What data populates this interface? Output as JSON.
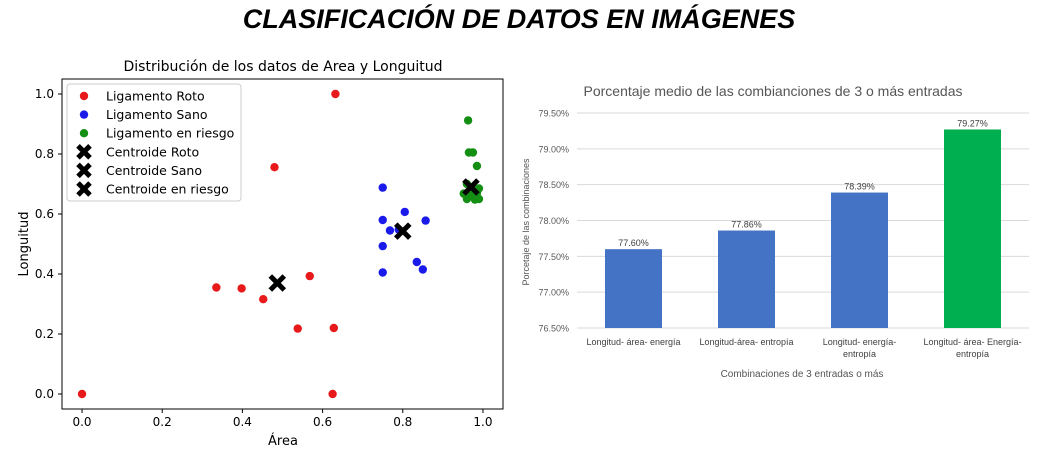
{
  "page": {
    "title": "CLASIFICACIÓN DE DATOS EN IMÁGENES"
  },
  "chart_data": [
    {
      "type": "scatter",
      "title": "Distribución de los datos de Area y Longuitud",
      "xlabel": "Área",
      "ylabel": "Longuitud",
      "xlim": [
        -0.05,
        1.05
      ],
      "ylim": [
        -0.05,
        1.05
      ],
      "xticks": [
        "0.0",
        "0.2",
        "0.4",
        "0.6",
        "0.8",
        "1.0"
      ],
      "yticks": [
        "0.0",
        "0.2",
        "0.4",
        "0.6",
        "0.8",
        "1.0"
      ],
      "legend_position": "top-left",
      "series": [
        {
          "name": "Ligamento Roto",
          "color": "#e8191b",
          "marker": "circle",
          "points": [
            [
              0.0,
              0.0
            ],
            [
              0.335,
              0.355
            ],
            [
              0.398,
              0.352
            ],
            [
              0.452,
              0.316
            ],
            [
              0.48,
              0.756
            ],
            [
              0.538,
              0.218
            ],
            [
              0.568,
              0.393
            ],
            [
              0.625,
              0.0
            ],
            [
              0.628,
              0.22
            ],
            [
              0.632,
              1.0
            ]
          ]
        },
        {
          "name": "Ligamento Sano",
          "color": "#1a1aeb",
          "marker": "circle",
          "points": [
            [
              0.75,
              0.688
            ],
            [
              0.75,
              0.58
            ],
            [
              0.75,
              0.493
            ],
            [
              0.75,
              0.405
            ],
            [
              0.768,
              0.545
            ],
            [
              0.79,
              0.548
            ],
            [
              0.805,
              0.607
            ],
            [
              0.835,
              0.44
            ],
            [
              0.85,
              0.415
            ],
            [
              0.857,
              0.578
            ]
          ]
        },
        {
          "name": "Ligamento en riesgo",
          "color": "#148f14",
          "marker": "circle",
          "points": [
            [
              0.963,
              0.912
            ],
            [
              0.965,
              0.805
            ],
            [
              0.975,
              0.805
            ],
            [
              0.985,
              0.76
            ],
            [
              0.952,
              0.668
            ],
            [
              0.96,
              0.7
            ],
            [
              0.96,
              0.65
            ],
            [
              0.97,
              0.66
            ],
            [
              0.975,
              0.685
            ],
            [
              0.98,
              0.648
            ],
            [
              0.985,
              0.67
            ],
            [
              0.99,
              0.65
            ],
            [
              0.99,
              0.685
            ],
            [
              0.965,
              0.66
            ]
          ]
        },
        {
          "name": "Centroide Roto",
          "color": "#000000",
          "marker": "x",
          "points": [
            [
              0.487,
              0.37
            ]
          ]
        },
        {
          "name": "Centroide Sano",
          "color": "#000000",
          "marker": "x",
          "points": [
            [
              0.8,
              0.543
            ]
          ]
        },
        {
          "name": "Centroide en riesgo",
          "color": "#000000",
          "marker": "x",
          "points": [
            [
              0.97,
              0.69
            ]
          ]
        }
      ]
    },
    {
      "type": "bar",
      "title": "Porcentaje medio de las combianciones de 3 o más entradas",
      "xlabel": "Combinaciones de 3 entradas o más",
      "ylabel": "Porcetaje de las combinaciones",
      "ylim": [
        76.5,
        79.5
      ],
      "yticks": [
        "76.50%",
        "77.00%",
        "77.50%",
        "78.00%",
        "78.50%",
        "79.00%",
        "79.50%"
      ],
      "grid": true,
      "categories": [
        [
          "Longitud- área- energía"
        ],
        [
          "Longitud-área- entropía"
        ],
        [
          "Longitud- energía-",
          "entropía"
        ],
        [
          "Longitud- área- Energía-",
          "entropía"
        ]
      ],
      "values": [
        77.6,
        77.86,
        78.39,
        79.27
      ],
      "data_labels": [
        "77.60%",
        "77.86%",
        "78.39%",
        "79.27%"
      ],
      "colors": [
        "#4472c4",
        "#4472c4",
        "#4472c4",
        "#00b050"
      ]
    }
  ]
}
